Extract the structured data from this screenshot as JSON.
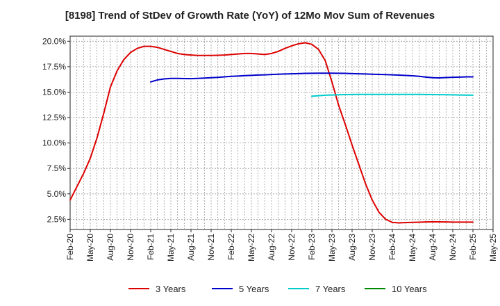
{
  "chart_data": {
    "type": "line",
    "title": "[8198]  Trend of StDev of Growth Rate (YoY) of 12Mo Mov Sum of Revenues",
    "xlabel": "",
    "ylabel": "",
    "ylim": [
      1.5,
      20.5
    ],
    "yticks": [
      2.5,
      5.0,
      7.5,
      10.0,
      12.5,
      15.0,
      17.5,
      20.0
    ],
    "ytick_labels": [
      "2.5%",
      "5.0%",
      "7.5%",
      "10.0%",
      "12.5%",
      "15.0%",
      "17.5%",
      "20.0%"
    ],
    "xtick_labels": [
      "Feb-20",
      "May-20",
      "Aug-20",
      "Nov-20",
      "Feb-21",
      "May-21",
      "Aug-21",
      "Nov-21",
      "Feb-22",
      "May-22",
      "Aug-22",
      "Nov-22",
      "Feb-23",
      "May-23",
      "Aug-23",
      "Nov-23",
      "Feb-24",
      "May-24",
      "Aug-24",
      "Nov-24",
      "Feb-25",
      "May-25"
    ],
    "grid": true,
    "legend_position": "bottom",
    "series": [
      {
        "name": "3 Years",
        "color": "#dd0000",
        "x": [
          0,
          1,
          2,
          3,
          4,
          5,
          6,
          7,
          8,
          9,
          10,
          11,
          12,
          13,
          14,
          15,
          16,
          17,
          18,
          19,
          20,
          21,
          22,
          23,
          24,
          25,
          26,
          27,
          28,
          29,
          30,
          31,
          32,
          33,
          34,
          35,
          36,
          37,
          38,
          39,
          40,
          41,
          42,
          43,
          44,
          45,
          46,
          47,
          48,
          49,
          50,
          51,
          52,
          53,
          54,
          55,
          56,
          57,
          58,
          59,
          60
        ],
        "values": [
          4.4,
          5.7,
          7.0,
          8.5,
          10.5,
          12.9,
          15.5,
          17.1,
          18.2,
          18.9,
          19.3,
          19.5,
          19.5,
          19.4,
          19.2,
          19.0,
          18.8,
          18.7,
          18.65,
          18.6,
          18.6,
          18.6,
          18.62,
          18.65,
          18.7,
          18.75,
          18.8,
          18.8,
          18.75,
          18.7,
          18.8,
          19.0,
          19.3,
          19.55,
          19.75,
          19.85,
          19.7,
          19.2,
          18.1,
          16.0,
          13.7,
          11.8,
          9.8,
          7.9,
          6.0,
          4.4,
          3.2,
          2.5,
          2.2,
          2.15,
          2.18,
          2.2,
          2.22,
          2.24,
          2.25,
          2.25,
          2.24,
          2.23,
          2.23,
          2.23,
          2.23
        ]
      },
      {
        "name": "5 Years",
        "color": "#0000cc",
        "x": [
          12,
          13,
          14,
          15,
          16,
          17,
          18,
          19,
          20,
          21,
          22,
          23,
          24,
          25,
          26,
          27,
          28,
          29,
          30,
          31,
          32,
          33,
          34,
          35,
          36,
          37,
          38,
          39,
          40,
          41,
          42,
          43,
          44,
          45,
          46,
          47,
          48,
          49,
          50,
          51,
          52,
          53,
          54,
          55,
          56,
          57,
          58,
          59,
          60
        ],
        "values": [
          16.0,
          16.2,
          16.3,
          16.35,
          16.35,
          16.33,
          16.32,
          16.35,
          16.38,
          16.42,
          16.45,
          16.5,
          16.55,
          16.58,
          16.62,
          16.65,
          16.68,
          16.7,
          16.73,
          16.76,
          16.78,
          16.8,
          16.82,
          16.84,
          16.85,
          16.86,
          16.86,
          16.86,
          16.85,
          16.84,
          16.82,
          16.8,
          16.78,
          16.76,
          16.74,
          16.72,
          16.7,
          16.67,
          16.64,
          16.6,
          16.55,
          16.48,
          16.42,
          16.4,
          16.43,
          16.46,
          16.48,
          16.5,
          16.5
        ]
      },
      {
        "name": "7 Years",
        "color": "#00cccc",
        "x": [
          36,
          37,
          38,
          39,
          40,
          41,
          42,
          43,
          44,
          45,
          46,
          47,
          48,
          49,
          50,
          51,
          52,
          53,
          54,
          55,
          56,
          57,
          58,
          59,
          60
        ],
        "values": [
          14.6,
          14.65,
          14.7,
          14.72,
          14.74,
          14.76,
          14.77,
          14.78,
          14.78,
          14.78,
          14.78,
          14.78,
          14.78,
          14.78,
          14.78,
          14.78,
          14.78,
          14.77,
          14.76,
          14.75,
          14.74,
          14.73,
          14.72,
          14.71,
          14.7
        ]
      },
      {
        "name": "10 Years",
        "color": "#008800",
        "x": [],
        "values": []
      }
    ]
  }
}
